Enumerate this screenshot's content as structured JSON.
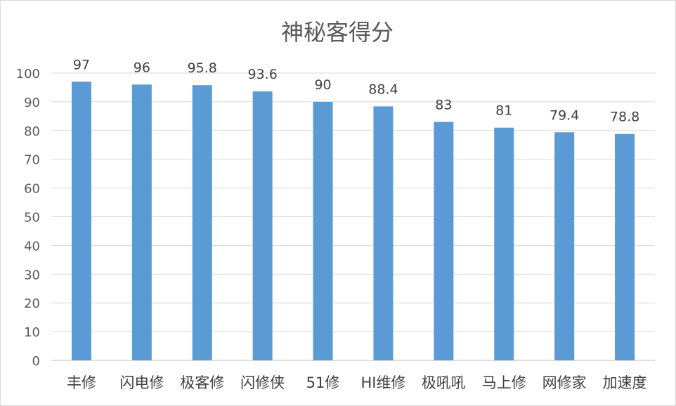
{
  "chart_data": {
    "type": "bar",
    "title": "神秘客得分",
    "categories": [
      "丰修",
      "闪电修",
      "极客修",
      "闪修侠",
      "51修",
      "HI维修",
      "极吼吼",
      "马上修",
      "网修家",
      "加速度"
    ],
    "values": [
      97,
      96,
      95.8,
      93.6,
      90,
      88.4,
      83,
      81,
      79.4,
      78.8
    ],
    "data_labels": [
      "97",
      "96",
      "95.8",
      "93.6",
      "90",
      "88.4",
      "83",
      "81",
      "79.4",
      "78.8"
    ],
    "xlabel": "",
    "ylabel": "",
    "ylim": [
      0,
      100
    ],
    "yticks": [
      0,
      10,
      20,
      30,
      40,
      50,
      60,
      70,
      80,
      90,
      100
    ],
    "grid": true,
    "bar_color": "#5b9bd5",
    "grid_color": "#d9d9d9"
  }
}
